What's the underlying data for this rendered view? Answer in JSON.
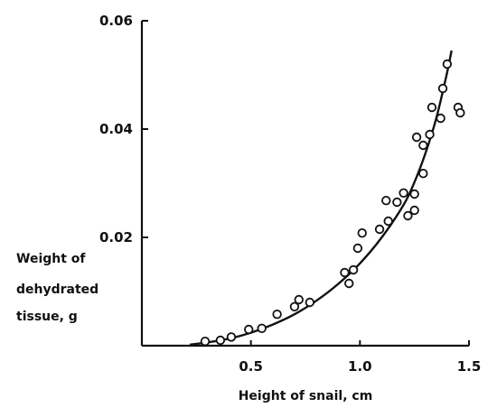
{
  "chart_data": {
    "type": "scatter",
    "title": "",
    "xlabel": "Height of snail, cm",
    "ylabel_lines": [
      "Weight of",
      "dehydrated",
      "tissue, g"
    ],
    "xlim": [
      0,
      1.5
    ],
    "ylim": [
      0,
      0.06
    ],
    "x_ticks": [
      0.5,
      1.0,
      1.5
    ],
    "x_tick_labels": [
      "0.5",
      "1.0",
      "1.5"
    ],
    "y_ticks": [
      0.02,
      0.04,
      0.06
    ],
    "y_tick_labels": [
      "0.02",
      "0.04",
      "0.06"
    ],
    "grid": false,
    "colors": {
      "ink": "#111111",
      "background": "#ffffff"
    },
    "points": [
      {
        "x": 0.29,
        "y": 0.0008
      },
      {
        "x": 0.36,
        "y": 0.001
      },
      {
        "x": 0.41,
        "y": 0.0016
      },
      {
        "x": 0.49,
        "y": 0.003
      },
      {
        "x": 0.55,
        "y": 0.0032
      },
      {
        "x": 0.62,
        "y": 0.0058
      },
      {
        "x": 0.7,
        "y": 0.0072
      },
      {
        "x": 0.72,
        "y": 0.0085
      },
      {
        "x": 0.77,
        "y": 0.008
      },
      {
        "x": 0.93,
        "y": 0.0135
      },
      {
        "x": 0.95,
        "y": 0.0115
      },
      {
        "x": 0.97,
        "y": 0.014
      },
      {
        "x": 0.99,
        "y": 0.018
      },
      {
        "x": 1.01,
        "y": 0.0208
      },
      {
        "x": 1.09,
        "y": 0.0215
      },
      {
        "x": 1.12,
        "y": 0.0268
      },
      {
        "x": 1.13,
        "y": 0.023
      },
      {
        "x": 1.17,
        "y": 0.0265
      },
      {
        "x": 1.2,
        "y": 0.0282
      },
      {
        "x": 1.22,
        "y": 0.024
      },
      {
        "x": 1.25,
        "y": 0.025
      },
      {
        "x": 1.25,
        "y": 0.028
      },
      {
        "x": 1.26,
        "y": 0.0385
      },
      {
        "x": 1.29,
        "y": 0.037
      },
      {
        "x": 1.29,
        "y": 0.0318
      },
      {
        "x": 1.32,
        "y": 0.039
      },
      {
        "x": 1.33,
        "y": 0.044
      },
      {
        "x": 1.37,
        "y": 0.042
      },
      {
        "x": 1.38,
        "y": 0.0475
      },
      {
        "x": 1.4,
        "y": 0.052
      },
      {
        "x": 1.45,
        "y": 0.044
      },
      {
        "x": 1.46,
        "y": 0.043
      }
    ],
    "fit_curve": {
      "x": [
        0.22,
        0.3,
        0.4,
        0.5,
        0.6,
        0.7,
        0.8,
        0.9,
        1.0,
        1.1,
        1.2,
        1.25,
        1.3,
        1.35,
        1.4,
        1.42
      ],
      "y": [
        0.0002,
        0.0006,
        0.0013,
        0.0024,
        0.0039,
        0.0058,
        0.0083,
        0.0114,
        0.0152,
        0.02,
        0.026,
        0.0302,
        0.0355,
        0.042,
        0.0505,
        0.0545
      ]
    }
  }
}
